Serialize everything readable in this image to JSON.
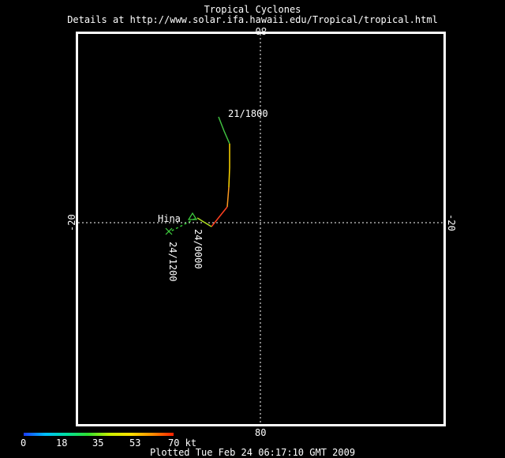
{
  "header": {
    "title": "Tropical Cyclones",
    "details": "Details at http://www.solar.ifa.hawaii.edu/Tropical/tropical.html"
  },
  "map": {
    "grid_longitude_label": "80",
    "grid_latitude_label": "-20",
    "storm_name": "Hina",
    "track_labels": [
      "21/1800",
      "24/0000",
      "24/1200"
    ],
    "intensity_colors_kt": [
      "#00c000",
      "#c8f000",
      "#ffe000",
      "#ff9000",
      "#ff2000"
    ]
  },
  "colorbar": {
    "ticks": [
      "0",
      "18",
      "35",
      "53",
      "70 kt"
    ]
  },
  "footer": {
    "plotted": "Plotted Tue Feb 24 06:17:10 GMT 2009"
  }
}
